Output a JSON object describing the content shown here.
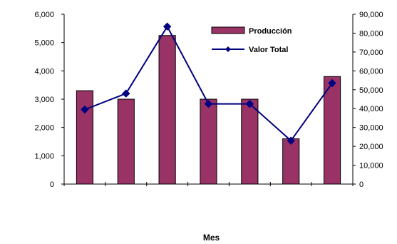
{
  "chart_data": {
    "type": "bar",
    "categories": [
      "",
      "",
      "",
      "",
      "",
      "",
      ""
    ],
    "xlabel": "Mes",
    "grid": false,
    "legend_position": "top-right",
    "y_left": {
      "range": [
        0,
        6000
      ],
      "ticks": [
        "0",
        "1,000",
        "2,000",
        "3,000",
        "4,000",
        "5,000",
        "6,000"
      ]
    },
    "y_right": {
      "range": [
        0,
        90000
      ],
      "ticks": [
        "0",
        "10,000",
        "20,000",
        "30,000",
        "40,000",
        "50,000",
        "60,000",
        "70,000",
        "80,000",
        "90,000"
      ]
    },
    "series": [
      {
        "name": "Producción",
        "type": "bar",
        "axis": "left",
        "color": "#993366",
        "values": [
          3300,
          3000,
          5250,
          3000,
          3000,
          1600,
          3800
        ]
      },
      {
        "name": "Valor Total",
        "type": "line",
        "axis": "right",
        "color": "#000080",
        "values": [
          39500,
          48000,
          83500,
          42500,
          42500,
          23000,
          53500
        ]
      }
    ]
  }
}
